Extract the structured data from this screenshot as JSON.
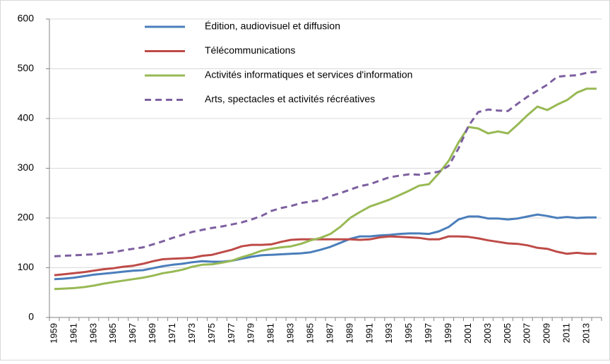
{
  "chart_data": {
    "type": "line",
    "categories": [
      "1959",
      null,
      "1961",
      null,
      "1963",
      null,
      "1965",
      null,
      "1967",
      null,
      "1969",
      null,
      "1971",
      null,
      "1973",
      null,
      "1975",
      null,
      "1977",
      null,
      "1979",
      null,
      "1981",
      null,
      "1983",
      null,
      "1985",
      null,
      "1987",
      null,
      "1989",
      null,
      "1991",
      null,
      "1993",
      null,
      "1995",
      null,
      "1997",
      null,
      "1999",
      null,
      "2001",
      null,
      "2003",
      null,
      "2005",
      null,
      "2007",
      null,
      "2009",
      null,
      "2011",
      null,
      "2013",
      null
    ],
    "series": [
      {
        "name": "Édition, audiovisuel et diffusion",
        "color": "#4a7ebb",
        "dashed": false,
        "values": [
          77,
          78,
          80,
          83,
          86,
          88,
          90,
          92,
          94,
          95,
          99,
          103,
          106,
          108,
          111,
          113,
          112,
          112,
          114,
          118,
          122,
          125,
          126,
          127,
          128,
          129,
          131,
          136,
          142,
          150,
          158,
          163,
          163,
          165,
          166,
          168,
          169,
          169,
          168,
          173,
          182,
          197,
          203,
          203,
          199,
          199,
          197,
          199,
          203,
          207,
          204,
          200,
          202,
          200,
          201,
          201
        ]
      },
      {
        "name": "Télécommunications",
        "color": "#be4b48",
        "dashed": false,
        "values": [
          85,
          87,
          89,
          91,
          94,
          97,
          99,
          102,
          104,
          108,
          113,
          117,
          118,
          119,
          120,
          124,
          126,
          131,
          136,
          143,
          146,
          146,
          147,
          152,
          156,
          157,
          157,
          157,
          157,
          157,
          157,
          156,
          157,
          161,
          163,
          162,
          161,
          160,
          157,
          157,
          163,
          163,
          162,
          159,
          155,
          152,
          149,
          148,
          145,
          140,
          138,
          132,
          128,
          130,
          128,
          128
        ]
      },
      {
        "name": "Activités informatiques et services d'information",
        "color": "#98b954",
        "dashed": false,
        "values": [
          57,
          58,
          59,
          61,
          64,
          68,
          71,
          74,
          77,
          80,
          84,
          89,
          92,
          96,
          102,
          106,
          107,
          110,
          114,
          121,
          127,
          134,
          138,
          141,
          143,
          148,
          155,
          160,
          168,
          182,
          200,
          212,
          223,
          230,
          237,
          246,
          255,
          265,
          268,
          290,
          315,
          352,
          383,
          380,
          370,
          374,
          370,
          388,
          407,
          424,
          417,
          428,
          437,
          452,
          460,
          460
        ]
      },
      {
        "name": "Arts, spectacles et activités récréatives",
        "color": "#7d60a0",
        "dashed": true,
        "values": [
          123,
          124,
          125,
          126,
          127,
          129,
          131,
          135,
          138,
          141,
          147,
          153,
          160,
          166,
          172,
          176,
          180,
          183,
          187,
          191,
          197,
          204,
          214,
          220,
          224,
          230,
          233,
          236,
          244,
          250,
          257,
          264,
          268,
          275,
          282,
          285,
          288,
          287,
          290,
          293,
          305,
          340,
          385,
          413,
          418,
          416,
          415,
          430,
          444,
          456,
          468,
          484,
          486,
          487,
          492,
          494
        ]
      }
    ],
    "ylim": [
      0,
      600
    ],
    "yticks": [
      0,
      100,
      200,
      300,
      400,
      500,
      600
    ],
    "grid": true,
    "legend": "upper center"
  }
}
